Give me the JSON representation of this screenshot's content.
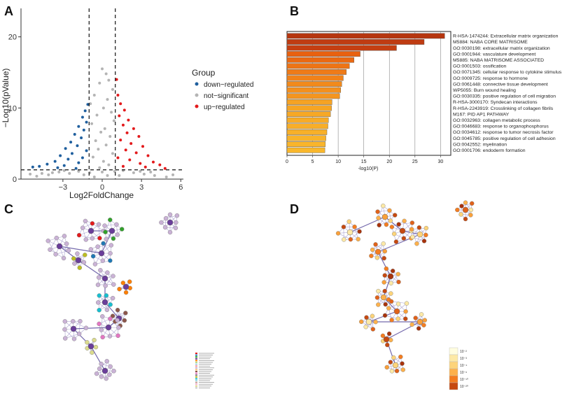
{
  "panels": {
    "A": {
      "letter": "A",
      "chart_data": {
        "type": "scatter",
        "title": "",
        "xlabel": "Log2FoldChange",
        "ylabel": "−Log10(pValue)",
        "xlim": [
          -6.2,
          6.2
        ],
        "ylim": [
          0,
          24
        ],
        "xticks": [
          -3,
          0,
          3,
          6
        ],
        "xtick_labels": [
          "−3",
          "0",
          "3",
          "6"
        ],
        "yticks": [
          0,
          10,
          20
        ],
        "ytick_labels": [
          "0",
          "10",
          "20"
        ],
        "vlines": [
          -1,
          1
        ],
        "hline": 1.3,
        "legend": {
          "title": "Group",
          "position": "right",
          "entries": [
            {
              "label": "down−regulated",
              "color": "#1f5f9e"
            },
            {
              "label": "not−significant",
              "color": "#b4b4b4"
            },
            {
              "label": "up−regulated",
              "color": "#e31a1c"
            }
          ]
        },
        "series": [
          {
            "name": "not−significant",
            "color": "#b4b4b4",
            "points": [
              [
                0.0,
                15.5
              ],
              [
                0.3,
                14.8
              ],
              [
                -0.2,
                13.5
              ],
              [
                0.5,
                13.9
              ],
              [
                0.8,
                12.6
              ],
              [
                -0.6,
                11.8
              ],
              [
                0.4,
                11.2
              ],
              [
                -0.9,
                10.6
              ],
              [
                0.1,
                10.0
              ],
              [
                0.7,
                9.4
              ],
              [
                -0.4,
                9.0
              ],
              [
                0.9,
                8.2
              ],
              [
                -0.8,
                7.8
              ],
              [
                0.2,
                7.1
              ],
              [
                -0.1,
                6.6
              ],
              [
                0.6,
                6.0
              ],
              [
                -0.5,
                5.4
              ],
              [
                0.3,
                4.8
              ],
              [
                -0.3,
                4.2
              ],
              [
                0.8,
                3.6
              ],
              [
                -0.7,
                3.1
              ],
              [
                0.1,
                2.5
              ],
              [
                0.5,
                2.0
              ],
              [
                -0.2,
                1.6
              ],
              [
                0.0,
                1.0
              ],
              [
                0.4,
                0.5
              ],
              [
                -0.6,
                0.3
              ],
              [
                -1.8,
                1.1
              ],
              [
                -2.5,
                0.8
              ],
              [
                -3.3,
                1.0
              ],
              [
                -4.1,
                0.6
              ],
              [
                -5.0,
                0.4
              ],
              [
                1.6,
                1.2
              ],
              [
                2.4,
                0.9
              ],
              [
                3.2,
                0.7
              ],
              [
                4.0,
                0.5
              ],
              [
                4.9,
                0.3
              ],
              [
                -1.4,
                0.6
              ],
              [
                1.3,
                0.5
              ],
              [
                2.9,
                1.1
              ],
              [
                -2.9,
                1.2
              ],
              [
                -3.8,
                0.9
              ],
              [
                3.7,
                1.0
              ],
              [
                -4.6,
                0.8
              ],
              [
                5.4,
                0.6
              ],
              [
                -5.5,
                0.7
              ],
              [
                -0.95,
                0.9
              ],
              [
                0.95,
                1.1
              ]
            ]
          },
          {
            "name": "down−regulated",
            "color": "#1f5f9e",
            "points": [
              [
                -1.1,
                10.5
              ],
              [
                -1.3,
                9.6
              ],
              [
                -1.5,
                8.7
              ],
              [
                -1.2,
                8.0
              ],
              [
                -1.8,
                7.4
              ],
              [
                -1.4,
                6.9
              ],
              [
                -2.1,
                6.3
              ],
              [
                -1.6,
                5.8
              ],
              [
                -2.4,
                5.2
              ],
              [
                -1.9,
                4.7
              ],
              [
                -2.8,
                4.3
              ],
              [
                -1.2,
                4.0
              ],
              [
                -2.3,
                3.6
              ],
              [
                -3.2,
                3.3
              ],
              [
                -1.5,
                3.0
              ],
              [
                -2.6,
                2.8
              ],
              [
                -3.6,
                2.5
              ],
              [
                -1.8,
                2.3
              ],
              [
                -4.2,
                2.1
              ],
              [
                -2.9,
                1.9
              ],
              [
                -4.8,
                1.8
              ],
              [
                -3.4,
                1.6
              ],
              [
                -5.3,
                1.7
              ],
              [
                -2.0,
                1.5
              ]
            ]
          },
          {
            "name": "up−regulated",
            "color": "#e31a1c",
            "points": [
              [
                1.1,
                14.0
              ],
              [
                1.2,
                11.8
              ],
              [
                1.4,
                10.6
              ],
              [
                1.7,
                9.7
              ],
              [
                1.3,
                8.9
              ],
              [
                2.0,
                8.3
              ],
              [
                1.6,
                7.6
              ],
              [
                2.4,
                7.1
              ],
              [
                1.9,
                6.5
              ],
              [
                2.8,
                6.0
              ],
              [
                1.4,
                5.5
              ],
              [
                2.2,
                5.0
              ],
              [
                3.1,
                4.6
              ],
              [
                1.8,
                4.1
              ],
              [
                2.6,
                3.7
              ],
              [
                3.5,
                3.3
              ],
              [
                1.2,
                3.0
              ],
              [
                2.1,
                2.7
              ],
              [
                3.9,
                2.4
              ],
              [
                2.9,
                2.2
              ],
              [
                4.4,
                2.0
              ],
              [
                1.6,
                1.8
              ],
              [
                3.3,
                1.7
              ],
              [
                4.8,
                1.5
              ]
            ]
          }
        ]
      }
    },
    "B": {
      "letter": "B",
      "chart_data": {
        "type": "bar",
        "orientation": "horizontal",
        "title": "",
        "xlabel": "-log10(P)",
        "xlim": [
          0,
          32
        ],
        "xticks": [
          0,
          5,
          10,
          15,
          20,
          25,
          30
        ],
        "xtick_labels": [
          "0",
          "5",
          "10",
          "15",
          "20",
          "25",
          "30"
        ],
        "categories": [
          "R-HSA-1474244: Extracellular matrix organization",
          "M5884: NABA CORE MATRISOME",
          "GO:0030198: extracellular matrix organization",
          "GO:0001944: vasculature development",
          "M5885: NABA MATRISOME ASSOCIATED",
          "GO:0001503: ossification",
          "GO:0071345: cellular response to cytokine stimulus",
          "GO:0009725: response to hormone",
          "GO:0061448: connective tissue development",
          "WP5055: Burn wound healing",
          "GO:0030335: positive regulation of cell migration",
          "R-HSA-3000170: Syndecan interactions",
          "R-HSA-2243919: Crosslinking of collagen fibrils",
          "M167: PID AP1 PATHWAY",
          "GO:0032963: collagen metabolic process",
          "GO:0046683: response to organophosphorus",
          "GO:0034612: response to tumor necrosis factor",
          "GO:0045785: positive regulation of cell adhesion",
          "GO:0042552: myelination",
          "GO:0001706: endoderm formation"
        ],
        "values": [
          30.8,
          26.8,
          21.4,
          14.3,
          13.1,
          12.2,
          11.6,
          11.0,
          10.7,
          10.5,
          10.3,
          8.8,
          8.7,
          8.5,
          8.1,
          8.0,
          7.8,
          7.6,
          7.5,
          7.4
        ],
        "colors": [
          "#b5360f",
          "#bf3c12",
          "#c43f12",
          "#e8610f",
          "#ea6912",
          "#ed7416",
          "#ef7b18",
          "#f0821a",
          "#f28a1c",
          "#f3901e",
          "#f4951f",
          "#f6a324",
          "#f6a524",
          "#f7a826",
          "#f7ab27",
          "#f8ae28",
          "#f8b029",
          "#f8b32a",
          "#f9b52b",
          "#f9b72c"
        ]
      }
    },
    "C": {
      "letter": "C",
      "legend_colors": [
        "#e31a1c",
        "#1f78b4",
        "#33a02c",
        "#6a3d9a",
        "#ff7f00",
        "#b2df8a",
        "#a6cee3",
        "#fb9a99",
        "#cab2d6",
        "#fdbf6f",
        "#8c564b",
        "#e377c2",
        "#7f7f7f",
        "#bcbd22",
        "#17becf",
        "#9edae5",
        "#c49c94",
        "#f7b6d2",
        "#dbdb8d",
        "#c7c7c7"
      ]
    },
    "D": {
      "letter": "D",
      "legend": {
        "entries": [
          {
            "label": "10⁻²",
            "color": "#fffde0"
          },
          {
            "label": "10⁻³",
            "color": "#fde9a6"
          },
          {
            "label": "10⁻⁴",
            "color": "#fdd47a"
          },
          {
            "label": "10⁻⁶",
            "color": "#fdb14c"
          },
          {
            "label": "10⁻¹⁰",
            "color": "#f47d20"
          },
          {
            "label": "10⁻²⁰",
            "color": "#c64910"
          }
        ]
      }
    }
  }
}
